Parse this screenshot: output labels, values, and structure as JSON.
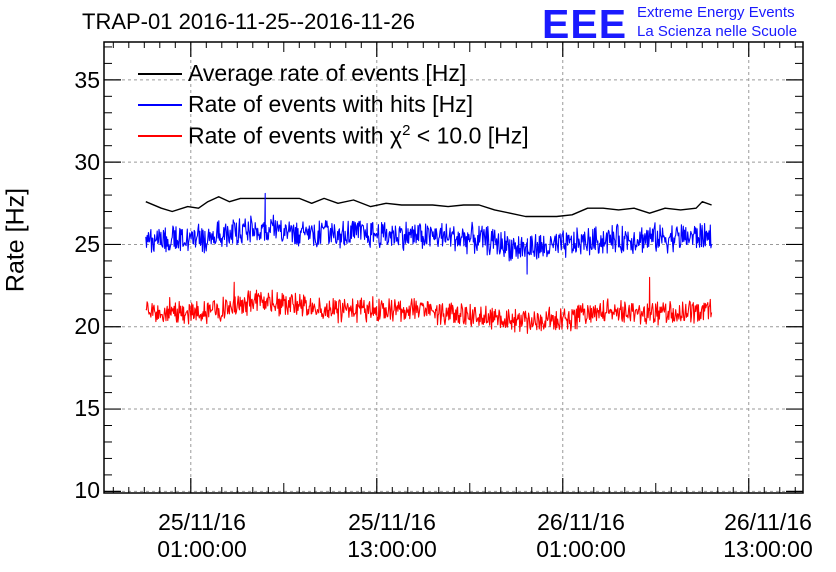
{
  "chart_data": {
    "type": "line",
    "title": "TRAP-01 2016-11-25--2016-11-26",
    "ylabel": "Rate [Hz]",
    "xlabel": "",
    "ylim": [
      9.9,
      37.3
    ],
    "xlim_hours": [
      -4.6,
      40.5
    ],
    "x_unit": "hours since 25/11/16 00:00:00",
    "y_ticks": [
      10,
      15,
      20,
      25,
      30,
      35
    ],
    "x_ticks": [
      {
        "hour": 1,
        "date": "25/11/16",
        "time": "01:00:00"
      },
      {
        "hour": 13,
        "date": "25/11/16",
        "time": "13:00:00"
      },
      {
        "hour": 25,
        "date": "26/11/16",
        "time": "01:00:00"
      },
      {
        "hour": 37,
        "date": "26/11/16",
        "time": "13:00:00"
      }
    ],
    "grid": true,
    "legend_position": "top-left",
    "series": [
      {
        "name": "Average rate of events [Hz]",
        "label_prefix": "Average rate of events [Hz]",
        "label_suffix": "",
        "color": "#000000",
        "x_start": -1.9,
        "x_end": 34.6,
        "points": [
          [
            -1.9,
            27.6
          ],
          [
            -0.9,
            27.2
          ],
          [
            -0.2,
            27.0
          ],
          [
            0.8,
            27.3
          ],
          [
            1.5,
            27.2
          ],
          [
            2.1,
            27.6
          ],
          [
            2.8,
            27.9
          ],
          [
            3.5,
            27.6
          ],
          [
            4.2,
            27.8
          ],
          [
            5.0,
            27.8
          ],
          [
            6.0,
            27.8
          ],
          [
            7.0,
            27.8
          ],
          [
            8.0,
            27.8
          ],
          [
            8.8,
            27.5
          ],
          [
            9.6,
            27.8
          ],
          [
            10.5,
            27.5
          ],
          [
            11.5,
            27.7
          ],
          [
            12.6,
            27.3
          ],
          [
            13.6,
            27.5
          ],
          [
            14.6,
            27.4
          ],
          [
            15.6,
            27.4
          ],
          [
            16.6,
            27.4
          ],
          [
            17.6,
            27.3
          ],
          [
            18.6,
            27.4
          ],
          [
            19.6,
            27.4
          ],
          [
            20.6,
            27.1
          ],
          [
            21.6,
            26.9
          ],
          [
            22.6,
            26.7
          ],
          [
            23.6,
            26.7
          ],
          [
            24.6,
            26.7
          ],
          [
            25.6,
            26.8
          ],
          [
            26.6,
            27.2
          ],
          [
            27.6,
            27.2
          ],
          [
            28.6,
            27.1
          ],
          [
            29.6,
            27.2
          ],
          [
            30.6,
            26.9
          ],
          [
            31.6,
            27.2
          ],
          [
            32.6,
            27.1
          ],
          [
            33.6,
            27.2
          ],
          [
            34.0,
            27.6
          ],
          [
            34.6,
            27.4
          ]
        ]
      },
      {
        "name": "Rate of events with hits [Hz]",
        "label_prefix": "Rate of events with hits [Hz]",
        "label_suffix": "",
        "color": "#0000ff",
        "x_start": -1.9,
        "x_end": 34.6,
        "baseline": [
          [
            -1.9,
            25.3
          ],
          [
            2.0,
            25.4
          ],
          [
            5.0,
            25.9
          ],
          [
            8.0,
            25.8
          ],
          [
            11.0,
            25.7
          ],
          [
            14.0,
            25.6
          ],
          [
            17.0,
            25.5
          ],
          [
            20.0,
            25.3
          ],
          [
            22.0,
            24.8
          ],
          [
            24.0,
            24.8
          ],
          [
            26.0,
            25.1
          ],
          [
            28.0,
            25.3
          ],
          [
            31.0,
            25.4
          ],
          [
            34.6,
            25.5
          ]
        ],
        "noise_half_range": 1.0,
        "spikes": [
          [
            5.8,
            28.1
          ],
          [
            22.7,
            23.2
          ]
        ]
      },
      {
        "name": "Rate of events with χ² < 10.0 [Hz]",
        "label_prefix": "Rate of events with χ",
        "label_sup": "2",
        "label_suffix": " < 10.0 [Hz]",
        "color": "#ff0000",
        "x_start": -1.9,
        "x_end": 34.6,
        "baseline": [
          [
            -1.9,
            21.0
          ],
          [
            2.0,
            20.9
          ],
          [
            5.0,
            21.5
          ],
          [
            8.0,
            21.3
          ],
          [
            11.0,
            21.0
          ],
          [
            14.0,
            21.1
          ],
          [
            17.0,
            20.9
          ],
          [
            20.0,
            20.6
          ],
          [
            22.0,
            20.4
          ],
          [
            24.0,
            20.4
          ],
          [
            26.0,
            20.6
          ],
          [
            28.0,
            21.0
          ],
          [
            31.0,
            20.8
          ],
          [
            34.6,
            20.9
          ]
        ],
        "noise_half_range": 0.85,
        "spikes": [
          [
            30.6,
            23.0
          ],
          [
            3.8,
            22.7
          ]
        ]
      }
    ]
  },
  "logo": {
    "mark": "EEE",
    "line1": "Extreme Energy Events",
    "line2": "La Scienza nelle Scuole"
  }
}
